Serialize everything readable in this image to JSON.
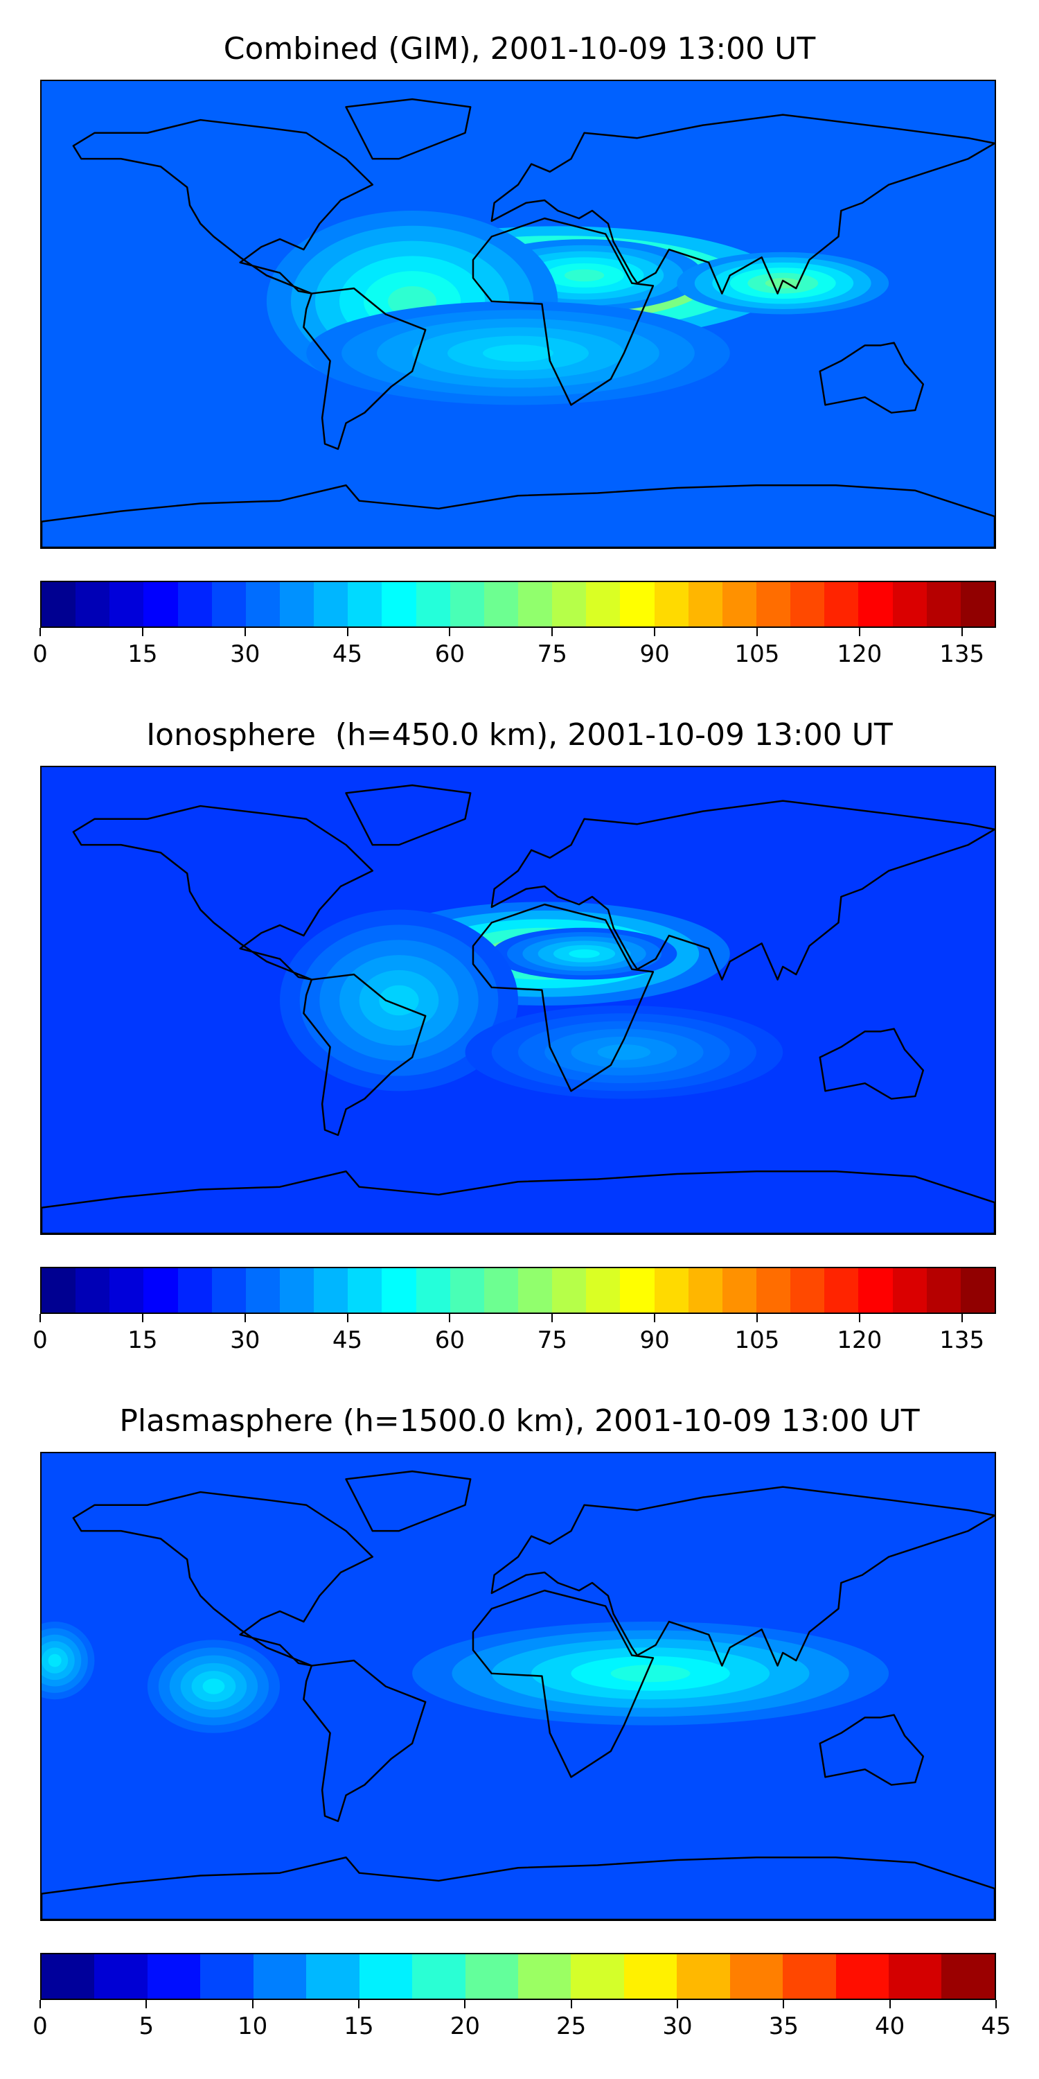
{
  "panels": [
    {
      "title": "Combined (GIM), 2001-10-09 13:00 UT",
      "colorbar": {
        "min": 0,
        "max": 140,
        "levels": 28,
        "tick_labels": [
          "0",
          "15",
          "30",
          "45",
          "60",
          "75",
          "90",
          "105",
          "120",
          "135"
        ],
        "tick_values": [
          0,
          15,
          30,
          45,
          60,
          75,
          90,
          105,
          120,
          135
        ]
      },
      "background_level": 0.22,
      "blobs": [
        {
          "lon": 15,
          "lat": 12,
          "rx": 85,
          "ry": 22,
          "level": 0.55
        },
        {
          "lon": 25,
          "lat": 15,
          "rx": 45,
          "ry": 14,
          "level": 0.2
        },
        {
          "lon": -40,
          "lat": 5,
          "rx": 55,
          "ry": 35,
          "level": 0.2
        },
        {
          "lon": 100,
          "lat": 12,
          "rx": 40,
          "ry": 12,
          "level": 0.25
        },
        {
          "lon": 0,
          "lat": -15,
          "rx": 80,
          "ry": 20,
          "level": 0.12
        }
      ]
    },
    {
      "title": "Ionosphere  (h=450.0 km), 2001-10-09 13:00 UT",
      "colorbar": {
        "min": 0,
        "max": 140,
        "levels": 28,
        "tick_labels": [
          "0",
          "15",
          "30",
          "45",
          "60",
          "75",
          "90",
          "105",
          "120",
          "135"
        ],
        "tick_values": [
          0,
          15,
          30,
          45,
          60,
          75,
          90,
          105,
          120,
          135
        ]
      },
      "background_level": 0.18,
      "blobs": [
        {
          "lon": 10,
          "lat": 18,
          "rx": 70,
          "ry": 20,
          "level": 0.35
        },
        {
          "lon": 25,
          "lat": 18,
          "rx": 35,
          "ry": 10,
          "level": 0.18
        },
        {
          "lon": -45,
          "lat": 0,
          "rx": 45,
          "ry": 35,
          "level": 0.15
        },
        {
          "lon": 40,
          "lat": -20,
          "rx": 60,
          "ry": 18,
          "level": 0.1
        }
      ]
    },
    {
      "title": "Plasmasphere (h=1500.0 km), 2001-10-09 13:00 UT",
      "colorbar": {
        "min": 0,
        "max": 45,
        "levels": 18,
        "tick_labels": [
          "0",
          "5",
          "10",
          "15",
          "20",
          "25",
          "30",
          "35",
          "40",
          "45"
        ],
        "tick_values": [
          0,
          5,
          10,
          15,
          20,
          25,
          30,
          35,
          40,
          45
        ]
      },
      "background_level": 0.2,
      "blobs": [
        {
          "lon": 82,
          "lat": 10,
          "rx": 18,
          "ry": 10,
          "level": 0.5
        },
        {
          "lon": 0,
          "lat": 3,
          "rx": 25,
          "ry": 7,
          "level": 0.3
        },
        {
          "lon": 50,
          "lat": 5,
          "rx": 90,
          "ry": 20,
          "level": 0.2
        },
        {
          "lon": -115,
          "lat": 0,
          "rx": 25,
          "ry": 18,
          "level": 0.15
        },
        {
          "lon": -175,
          "lat": 10,
          "rx": 15,
          "ry": 15,
          "level": 0.15
        }
      ]
    }
  ],
  "colors": {
    "jet_stops": [
      "#00007f",
      "#0000ff",
      "#007fff",
      "#00ffff",
      "#7fff7f",
      "#ffff00",
      "#ff7f00",
      "#ff0000",
      "#7f0000"
    ],
    "coastline": "#000000"
  }
}
